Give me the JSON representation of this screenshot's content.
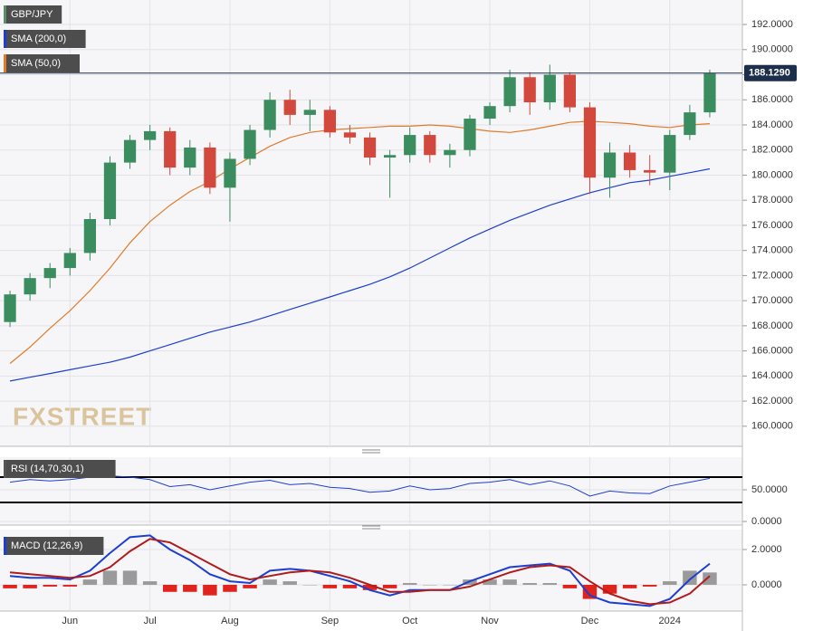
{
  "chart_data": [
    {
      "type": "candlestick",
      "title": "GBP/JPY",
      "watermark": "FXSTREET",
      "categories": [
        null,
        null,
        null,
        "Jun",
        null,
        null,
        null,
        "Jul",
        null,
        null,
        null,
        "Aug",
        null,
        null,
        null,
        null,
        "Sep",
        null,
        null,
        null,
        "Oct",
        null,
        null,
        null,
        "Nov",
        null,
        null,
        null,
        null,
        "Dec",
        null,
        null,
        null,
        "2024",
        null,
        null
      ],
      "open": [
        168.3,
        170.5,
        171.8,
        172.6,
        173.8,
        176.5,
        181.0,
        182.8,
        183.5,
        180.6,
        182.2,
        179.0,
        181.3,
        183.6,
        186.0,
        184.8,
        185.2,
        183.4,
        183.0,
        181.4,
        181.6,
        183.2,
        181.6,
        182.0,
        184.5,
        185.5,
        187.8,
        185.8,
        188.0,
        185.4,
        179.8,
        181.8,
        180.4,
        180.2,
        183.2,
        185.0
      ],
      "high": [
        170.8,
        172.2,
        173.0,
        174.2,
        177.0,
        181.5,
        183.2,
        184.0,
        183.8,
        182.8,
        182.6,
        181.8,
        184.0,
        186.6,
        186.8,
        186.0,
        185.5,
        184.0,
        183.4,
        182.0,
        183.8,
        183.5,
        182.5,
        184.8,
        185.8,
        188.4,
        188.2,
        188.8,
        188.2,
        185.8,
        182.6,
        182.4,
        181.6,
        183.6,
        185.6,
        188.4
      ],
      "low": [
        167.9,
        170.0,
        171.0,
        172.0,
        173.2,
        176.0,
        180.5,
        182.0,
        180.0,
        180.0,
        178.5,
        176.3,
        180.8,
        183.0,
        184.0,
        183.5,
        183.0,
        182.5,
        180.8,
        178.2,
        181.0,
        181.0,
        180.6,
        181.5,
        184.0,
        185.0,
        184.8,
        185.2,
        185.0,
        178.5,
        178.2,
        179.8,
        179.2,
        178.8,
        182.8,
        184.6
      ],
      "close": [
        170.5,
        171.8,
        172.6,
        173.8,
        176.5,
        181.0,
        182.8,
        183.5,
        180.6,
        182.2,
        179.0,
        181.3,
        183.6,
        186.0,
        184.8,
        185.2,
        183.4,
        183.0,
        181.4,
        181.6,
        183.2,
        181.6,
        182.0,
        184.5,
        185.5,
        187.8,
        185.8,
        188.0,
        185.4,
        179.8,
        181.8,
        180.4,
        180.2,
        183.2,
        185.0,
        188.1
      ],
      "up_color": "#3b8c5e",
      "down_color": "#d2483c",
      "series": [
        {
          "name": "SMA (200,0)",
          "color": "#1d3fcf",
          "values": [
            163.6,
            163.9,
            164.2,
            164.5,
            164.8,
            165.1,
            165.5,
            166.0,
            166.5,
            167.0,
            167.5,
            167.9,
            168.3,
            168.8,
            169.3,
            169.8,
            170.3,
            170.8,
            171.3,
            171.9,
            172.6,
            173.4,
            174.2,
            175.0,
            175.7,
            176.4,
            177.0,
            177.6,
            178.1,
            178.6,
            179.0,
            179.4,
            179.6,
            179.9,
            180.2,
            180.5
          ]
        },
        {
          "name": "SMA (50,0)",
          "color": "#e07b2a",
          "values": [
            165.0,
            166.3,
            167.8,
            169.2,
            170.8,
            172.6,
            174.6,
            176.3,
            177.6,
            178.7,
            179.5,
            180.5,
            181.4,
            182.3,
            183.0,
            183.4,
            183.6,
            183.7,
            183.8,
            183.9,
            183.9,
            184.0,
            183.9,
            183.7,
            183.5,
            183.4,
            183.6,
            183.9,
            184.2,
            184.3,
            184.2,
            184.1,
            183.9,
            183.8,
            184.0,
            184.1
          ]
        }
      ],
      "last_price": {
        "value": 188.129,
        "label": "188.1290"
      },
      "ylim": [
        158.4,
        193.95
      ],
      "yticks": [
        {
          "value": 160,
          "label": "160.0000"
        },
        {
          "value": 162,
          "label": "162.0000"
        },
        {
          "value": 164,
          "label": "164.0000"
        },
        {
          "value": 166,
          "label": "166.0000"
        },
        {
          "value": 168,
          "label": "168.0000"
        },
        {
          "value": 170,
          "label": "170.0000"
        },
        {
          "value": 172,
          "label": "172.0000"
        },
        {
          "value": 174,
          "label": "174.0000"
        },
        {
          "value": 176,
          "label": "176.0000"
        },
        {
          "value": 178,
          "label": "178.0000"
        },
        {
          "value": 180,
          "label": "180.0000"
        },
        {
          "value": 182,
          "label": "182.0000"
        },
        {
          "value": 184,
          "label": "184.0000"
        },
        {
          "value": 186,
          "label": "186.0000"
        },
        {
          "value": 188,
          "label": "188.0000"
        },
        {
          "value": 190,
          "label": "190.0000"
        },
        {
          "value": 192,
          "label": "192.0000"
        }
      ]
    },
    {
      "type": "line",
      "title": "RSI (14,70,30,1)",
      "series": [
        {
          "color": "#1d3fcf",
          "values": [
            62,
            66,
            64,
            66,
            70,
            72,
            70,
            66,
            55,
            58,
            50,
            56,
            62,
            65,
            58,
            60,
            54,
            52,
            46,
            48,
            56,
            50,
            52,
            60,
            62,
            66,
            58,
            64,
            56,
            40,
            48,
            45,
            44,
            56,
            62,
            68
          ]
        }
      ],
      "levels": [
        70,
        30
      ],
      "ylim": [
        -5.7,
        101.4
      ],
      "yticks": [
        {
          "value": 0,
          "label": "0.0000"
        },
        {
          "value": 50,
          "label": "50.0000"
        }
      ]
    },
    {
      "type": "macd",
      "title": "MACD (12,26,9)",
      "series": [
        {
          "color": "#1d3fcf",
          "values": [
            0.5,
            0.4,
            0.4,
            0.3,
            0.8,
            1.8,
            2.7,
            2.8,
            2.0,
            1.4,
            0.6,
            0.2,
            0.1,
            0.8,
            0.9,
            0.8,
            0.5,
            0.2,
            -0.3,
            -0.6,
            -0.3,
            -0.3,
            -0.3,
            0.2,
            0.6,
            1.0,
            1.1,
            1.2,
            0.8,
            -0.6,
            -1.0,
            -1.1,
            -1.2,
            -0.8,
            0.3,
            1.2
          ]
        },
        {
          "color": "#b01c1c",
          "values": [
            0.7,
            0.6,
            0.5,
            0.4,
            0.5,
            1.0,
            1.9,
            2.6,
            2.4,
            1.8,
            1.2,
            0.6,
            0.3,
            0.5,
            0.7,
            0.8,
            0.7,
            0.4,
            0.0,
            -0.4,
            -0.4,
            -0.3,
            -0.3,
            -0.1,
            0.3,
            0.7,
            1.0,
            1.1,
            1.0,
            0.2,
            -0.5,
            -0.9,
            -1.1,
            -1.0,
            -0.5,
            0.5
          ]
        }
      ],
      "histogram": {
        "up_color": "#9a9a9a",
        "down_color": "#e0231c",
        "values": [
          -0.2,
          -0.2,
          -0.1,
          -0.1,
          0.3,
          0.8,
          0.8,
          0.2,
          -0.4,
          -0.4,
          -0.6,
          -0.4,
          -0.2,
          0.3,
          0.2,
          0.0,
          -0.2,
          -0.2,
          -0.3,
          -0.2,
          0.1,
          0.0,
          0.0,
          0.3,
          0.3,
          0.3,
          0.1,
          0.1,
          -0.2,
          -0.8,
          -0.5,
          -0.2,
          -0.1,
          0.2,
          0.8,
          0.7
        ]
      },
      "ylim": [
        -2.26,
        3.13
      ],
      "yticks": [
        {
          "value": 0,
          "label": "0.0000"
        },
        {
          "value": 2,
          "label": "2.0000"
        }
      ]
    }
  ]
}
